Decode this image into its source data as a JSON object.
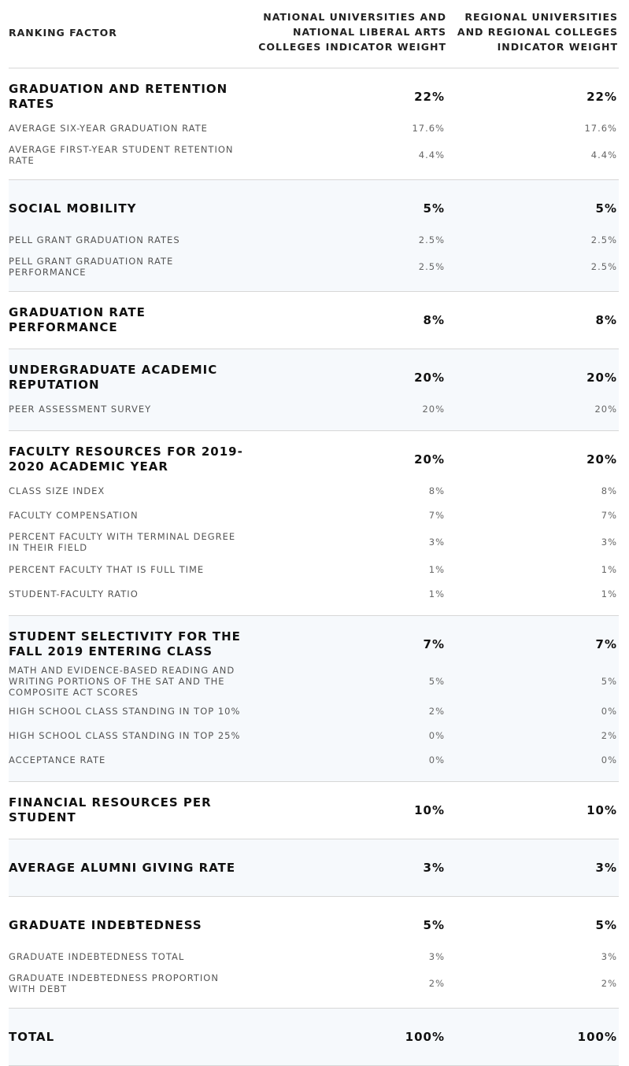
{
  "header": {
    "factor": "RANKING FACTOR",
    "national": "NATIONAL UNIVERSITIES AND NATIONAL LIBERAL ARTS COLLEGES INDICATOR WEIGHT",
    "regional": "REGIONAL UNIVERSITIES AND REGIONAL COLLEGES INDICATOR WEIGHT"
  },
  "groups": [
    {
      "main": {
        "label": "GRADUATION AND RETENTION RATES",
        "national": "22%",
        "regional": "22%"
      },
      "subs": [
        {
          "label": "AVERAGE SIX-YEAR GRADUATION RATE",
          "national": "17.6%",
          "regional": "17.6%"
        },
        {
          "label": "AVERAGE FIRST-YEAR STUDENT RETENTION RATE",
          "national": "4.4%",
          "regional": "4.4%"
        }
      ]
    },
    {
      "main": {
        "label": "SOCIAL MOBILITY",
        "national": "5%",
        "regional": "5%"
      },
      "subs": [
        {
          "label": "PELL GRANT GRADUATION RATES",
          "national": "2.5%",
          "regional": "2.5%"
        },
        {
          "label": "PELL GRANT GRADUATION RATE PERFORMANCE",
          "national": "2.5%",
          "regional": "2.5%"
        }
      ]
    },
    {
      "main": {
        "label": "GRADUATION RATE PERFORMANCE",
        "national": "8%",
        "regional": "8%"
      },
      "subs": []
    },
    {
      "main": {
        "label": "UNDERGRADUATE ACADEMIC REPUTATION",
        "national": "20%",
        "regional": "20%"
      },
      "subs": [
        {
          "label": "PEER ASSESSMENT SURVEY",
          "national": "20%",
          "regional": "20%"
        }
      ]
    },
    {
      "main": {
        "label": "FACULTY RESOURCES FOR 2019-2020 ACADEMIC YEAR",
        "national": "20%",
        "regional": "20%"
      },
      "subs": [
        {
          "label": "CLASS SIZE INDEX",
          "national": "8%",
          "regional": "8%"
        },
        {
          "label": "FACULTY COMPENSATION",
          "national": "7%",
          "regional": "7%"
        },
        {
          "label": "PERCENT FACULTY WITH TERMINAL DEGREE IN THEIR FIELD",
          "national": "3%",
          "regional": "3%"
        },
        {
          "label": "PERCENT FACULTY THAT IS FULL TIME",
          "national": "1%",
          "regional": "1%"
        },
        {
          "label": "STUDENT-FACULTY RATIO",
          "national": "1%",
          "regional": "1%"
        }
      ]
    },
    {
      "main": {
        "label": "STUDENT SELECTIVITY FOR THE FALL 2019 ENTERING CLASS",
        "national": "7%",
        "regional": "7%"
      },
      "subs": [
        {
          "label": "MATH AND EVIDENCE-BASED READING AND WRITING PORTIONS OF THE SAT AND THE COMPOSITE ACT SCORES",
          "national": "5%",
          "regional": "5%"
        },
        {
          "label": "HIGH SCHOOL CLASS STANDING IN TOP 10%",
          "national": "2%",
          "regional": "0%"
        },
        {
          "label": "HIGH SCHOOL CLASS STANDING IN TOP 25%",
          "national": "0%",
          "regional": "2%"
        },
        {
          "label": "ACCEPTANCE RATE",
          "national": "0%",
          "regional": "0%"
        }
      ]
    },
    {
      "main": {
        "label": "FINANCIAL RESOURCES PER STUDENT",
        "national": "10%",
        "regional": "10%"
      },
      "subs": []
    },
    {
      "main": {
        "label": "AVERAGE ALUMNI GIVING RATE",
        "national": "3%",
        "regional": "3%"
      },
      "subs": []
    },
    {
      "main": {
        "label": "GRADUATE INDEBTEDNESS",
        "national": "5%",
        "regional": "5%"
      },
      "subs": [
        {
          "label": "GRADUATE INDEBTEDNESS TOTAL",
          "national": "3%",
          "regional": "3%"
        },
        {
          "label": "GRADUATE INDEBTEDNESS PROPORTION WITH DEBT",
          "national": "2%",
          "regional": "2%"
        }
      ]
    },
    {
      "main": {
        "label": "TOTAL",
        "national": "100%",
        "regional": "100%"
      },
      "subs": []
    }
  ]
}
